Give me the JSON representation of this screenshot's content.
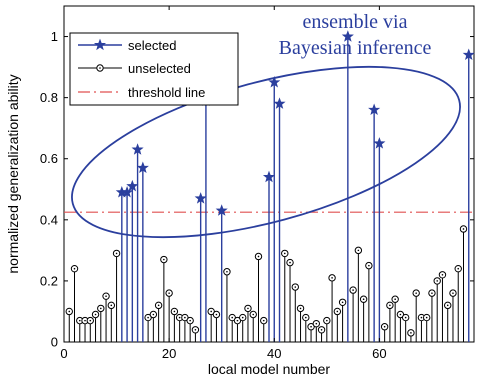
{
  "chart_data": {
    "type": "stem",
    "xlabel": "local model number",
    "ylabel": "normalized generalization ability",
    "xlim": [
      0,
      78
    ],
    "ylim": [
      0,
      1.1
    ],
    "xticks": [
      0,
      20,
      40,
      60
    ],
    "yticks": [
      0,
      0.2,
      0.4,
      0.6,
      0.8,
      1
    ],
    "ytick_labels": [
      "0",
      "0.2",
      "0.4",
      "0.6",
      "0.8",
      "1"
    ],
    "threshold": 0.425,
    "legend": {
      "position": "top-left",
      "entries": [
        {
          "key": "selected",
          "label": "selected",
          "color": "#2b3f9e"
        },
        {
          "key": "unselected",
          "label": "unselected",
          "color": "#000000"
        },
        {
          "key": "threshold",
          "label": "threshold line",
          "color": "#e05050"
        }
      ]
    },
    "annotation": {
      "lines": [
        "ensemble via",
        "Bayesian inference"
      ],
      "color": "#2b3f9e"
    },
    "series": [
      {
        "name": "unselected",
        "points": [
          [
            1,
            0.1
          ],
          [
            2,
            0.24
          ],
          [
            3,
            0.07
          ],
          [
            4,
            0.07
          ],
          [
            5,
            0.07
          ],
          [
            6,
            0.09
          ],
          [
            7,
            0.11
          ],
          [
            8,
            0.15
          ],
          [
            9,
            0.12
          ],
          [
            10,
            0.29
          ],
          [
            16,
            0.08
          ],
          [
            17,
            0.09
          ],
          [
            18,
            0.12
          ],
          [
            19,
            0.27
          ],
          [
            20,
            0.16
          ],
          [
            21,
            0.1
          ],
          [
            22,
            0.08
          ],
          [
            23,
            0.08
          ],
          [
            24,
            0.07
          ],
          [
            25,
            0.04
          ],
          [
            28,
            0.1
          ],
          [
            29,
            0.09
          ],
          [
            31,
            0.23
          ],
          [
            32,
            0.08
          ],
          [
            33,
            0.07
          ],
          [
            34,
            0.08
          ],
          [
            35,
            0.11
          ],
          [
            36,
            0.09
          ],
          [
            37,
            0.28
          ],
          [
            38,
            0.07
          ],
          [
            42,
            0.29
          ],
          [
            43,
            0.26
          ],
          [
            44,
            0.18
          ],
          [
            45,
            0.11
          ],
          [
            46,
            0.08
          ],
          [
            47,
            0.05
          ],
          [
            48,
            0.06
          ],
          [
            49,
            0.04
          ],
          [
            50,
            0.07
          ],
          [
            51,
            0.21
          ],
          [
            52,
            0.1
          ],
          [
            53,
            0.13
          ],
          [
            55,
            0.17
          ],
          [
            56,
            0.3
          ],
          [
            57,
            0.14
          ],
          [
            58,
            0.25
          ],
          [
            61,
            0.05
          ],
          [
            62,
            0.12
          ],
          [
            63,
            0.14
          ],
          [
            64,
            0.09
          ],
          [
            65,
            0.08
          ],
          [
            66,
            0.03
          ],
          [
            67,
            0.16
          ],
          [
            68,
            0.08
          ],
          [
            69,
            0.08
          ],
          [
            70,
            0.16
          ],
          [
            71,
            0.2
          ],
          [
            72,
            0.22
          ],
          [
            73,
            0.12
          ],
          [
            74,
            0.16
          ],
          [
            75,
            0.24
          ],
          [
            76,
            0.37
          ]
        ]
      },
      {
        "name": "selected",
        "points": [
          [
            11,
            0.49
          ],
          [
            12,
            0.49
          ],
          [
            13,
            0.51
          ],
          [
            14,
            0.63
          ],
          [
            15,
            0.57
          ],
          [
            26,
            0.47
          ],
          [
            27,
            0.79
          ],
          [
            30,
            0.43
          ],
          [
            39,
            0.54
          ],
          [
            40,
            0.85
          ],
          [
            41,
            0.78
          ],
          [
            54,
            1.0
          ],
          [
            59,
            0.76
          ],
          [
            60,
            0.65
          ],
          [
            77,
            0.94
          ]
        ]
      }
    ]
  }
}
